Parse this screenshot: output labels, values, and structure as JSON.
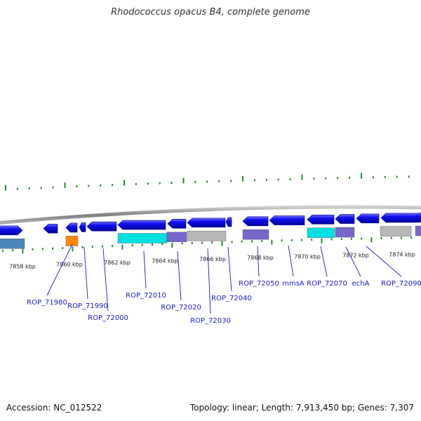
{
  "title": "Rhodococcus opacus B4, complete genome",
  "footer": {
    "accession": "Accession: NC_012522",
    "topology": "Topology: linear; Length: 7,913,450 bp; Genes: 7,307"
  },
  "colors": {
    "gene_blue": "#0000dd",
    "cds_cyan": "#00e0e0",
    "cds_purple": "#7766cc",
    "cds_steel": "#4a86b8",
    "cds_orange": "#ff8800",
    "cds_gray": "#b8b8b8",
    "tick_green": "#2a8a2a",
    "backbone": "#888888",
    "label_blue": "#1a1ac8"
  },
  "kbp_labels": [
    "7858 kbp",
    "7860 kbp",
    "7862 kbp",
    "7864 kbp",
    "7866 kbp",
    "7868 kbp",
    "7870 kbp",
    "7872 kbp",
    "7874 kbp"
  ],
  "gene_labels": [
    "ROP_71980",
    "ROP_71990",
    "ROP_72000",
    "ROP_72010",
    "ROP_72020",
    "ROP_72030",
    "ROP_72040",
    "ROP_72050",
    "mmsA",
    "ROP_72070",
    "echA",
    "ROP_72090"
  ]
}
